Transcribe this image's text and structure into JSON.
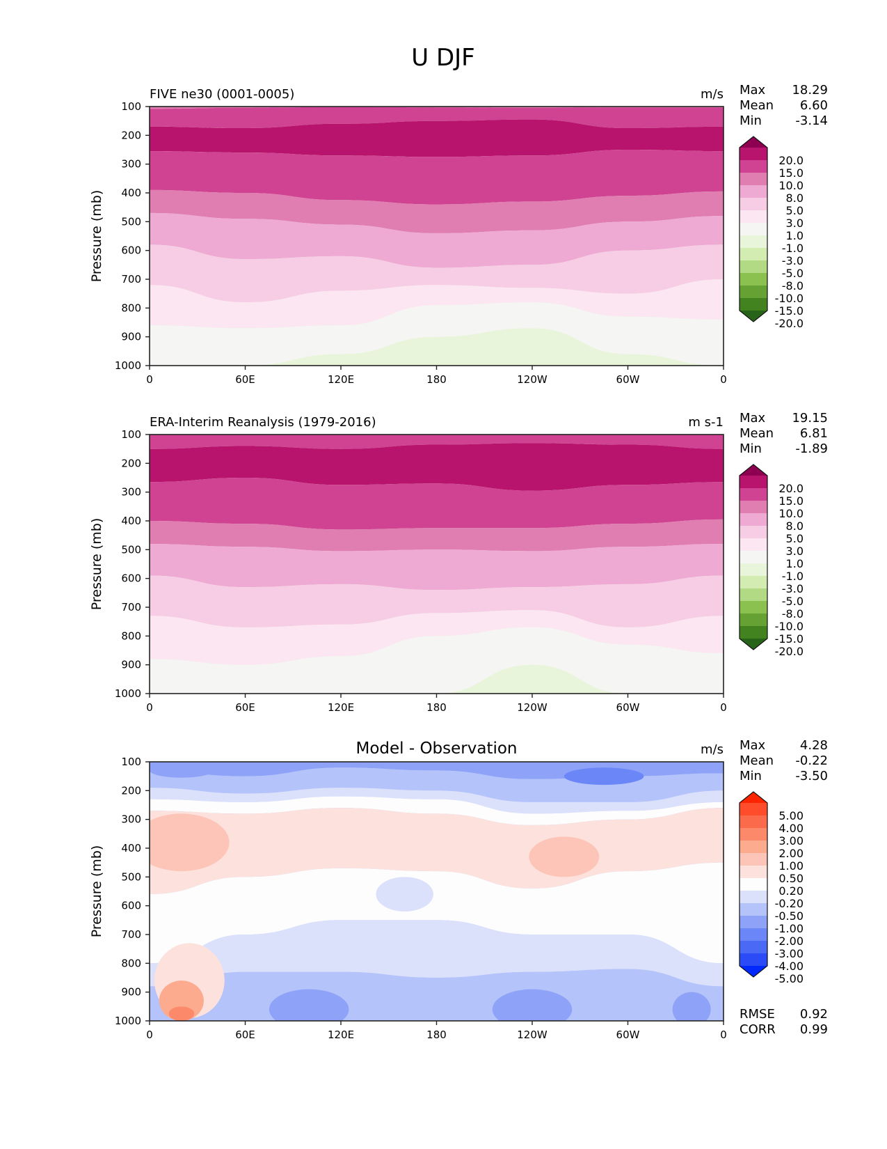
{
  "suptitle": "U DJF",
  "chart_data": [
    {
      "type": "heatmap",
      "subtype": "filled-contour (longitude-pressure cross section)",
      "title_left": "FIVE ne30 (0001-0005)",
      "title_center": "",
      "units": "m/s",
      "xlabel": "",
      "ylabel": "Pressure (mb)",
      "x_ticks": [
        "0",
        "60E",
        "120E",
        "180",
        "120W",
        "60W",
        "0"
      ],
      "x_range_deg": [
        0,
        360
      ],
      "y_ticks": [
        "100",
        "200",
        "300",
        "400",
        "500",
        "600",
        "700",
        "800",
        "900",
        "1000"
      ],
      "y_range": [
        100,
        1000
      ],
      "y_inverted": true,
      "stats": [
        {
          "label": "Max",
          "value": "18.29"
        },
        {
          "label": "Mean",
          "value": "6.60"
        },
        {
          "label": "Min",
          "value": "-3.14"
        }
      ],
      "colorbar": {
        "extend": "both",
        "levels": [
          "20.0",
          "15.0",
          "10.0",
          "8.0",
          "5.0",
          "3.0",
          "1.0",
          "-1.0",
          "-3.0",
          "-5.0",
          "-8.0",
          "-10.0",
          "-15.0",
          "-20.0"
        ],
        "colors": [
          "#8e0152",
          "#b8146e",
          "#d04392",
          "#e07db1",
          "#eeaad2",
          "#f7cde6",
          "#fbe6f1",
          "#f5f5f4",
          "#e9f5da",
          "#d2ecb2",
          "#b2da84",
          "#8bc14f",
          "#65a233",
          "#42821f",
          "#276419"
        ]
      },
      "bands_hpa": [
        {
          "color_index": 3,
          "top": [
            100,
            100,
            100,
            100,
            100,
            100,
            100
          ],
          "bottom": [
            108,
            104,
            102,
            103,
            104,
            103,
            103
          ]
        },
        {
          "color_index": 2,
          "top": [
            108,
            104,
            102,
            103,
            104,
            103,
            103
          ],
          "bottom": [
            170,
            175,
            160,
            150,
            145,
            175,
            170
          ]
        },
        {
          "color_index": 1,
          "top": [
            170,
            175,
            160,
            150,
            145,
            175,
            170
          ],
          "bottom": [
            255,
            260,
            270,
            275,
            270,
            250,
            255
          ]
        },
        {
          "color_index": 2,
          "top": [
            255,
            260,
            270,
            275,
            270,
            250,
            255
          ],
          "bottom": [
            390,
            400,
            425,
            440,
            430,
            410,
            395
          ]
        },
        {
          "color_index": 3,
          "top": [
            390,
            400,
            425,
            440,
            430,
            410,
            395
          ],
          "bottom": [
            470,
            490,
            510,
            540,
            530,
            500,
            480
          ]
        },
        {
          "color_index": 4,
          "top": [
            470,
            490,
            510,
            540,
            530,
            500,
            480
          ],
          "bottom": [
            580,
            630,
            620,
            660,
            650,
            600,
            580
          ]
        },
        {
          "color_index": 5,
          "top": [
            580,
            630,
            620,
            660,
            650,
            600,
            580
          ],
          "bottom": [
            720,
            780,
            740,
            720,
            730,
            750,
            700
          ]
        },
        {
          "color_index": 6,
          "top": [
            720,
            780,
            740,
            720,
            730,
            750,
            700
          ],
          "bottom": [
            860,
            870,
            860,
            790,
            780,
            830,
            840
          ]
        },
        {
          "color_index": 7,
          "top": [
            860,
            870,
            860,
            790,
            780,
            830,
            840
          ],
          "bottom": [
            1000,
            1000,
            1000,
            1000,
            1000,
            1000,
            1000
          ]
        },
        {
          "color_index": 8,
          "top": [
            1000,
            1000,
            960,
            900,
            870,
            960,
            1000
          ],
          "bottom": [
            1000,
            1000,
            1000,
            1000,
            1000,
            1000,
            1000
          ]
        }
      ]
    },
    {
      "type": "heatmap",
      "subtype": "filled-contour (longitude-pressure cross section)",
      "title_left": "ERA-Interim Reanalysis (1979-2016)",
      "title_center": "",
      "units": "m s-1",
      "xlabel": "",
      "ylabel": "Pressure (mb)",
      "x_ticks": [
        "0",
        "60E",
        "120E",
        "180",
        "120W",
        "60W",
        "0"
      ],
      "x_range_deg": [
        0,
        360
      ],
      "y_ticks": [
        "100",
        "200",
        "300",
        "400",
        "500",
        "600",
        "700",
        "800",
        "900",
        "1000"
      ],
      "y_range": [
        100,
        1000
      ],
      "y_inverted": true,
      "stats": [
        {
          "label": "Max",
          "value": "19.15"
        },
        {
          "label": "Mean",
          "value": "6.81"
        },
        {
          "label": "Min",
          "value": "-1.89"
        }
      ],
      "colorbar": {
        "extend": "both",
        "levels": [
          "20.0",
          "15.0",
          "10.0",
          "8.0",
          "5.0",
          "3.0",
          "1.0",
          "-1.0",
          "-3.0",
          "-5.0",
          "-8.0",
          "-10.0",
          "-15.0",
          "-20.0"
        ],
        "colors": [
          "#8e0152",
          "#b8146e",
          "#d04392",
          "#e07db1",
          "#eeaad2",
          "#f7cde6",
          "#fbe6f1",
          "#f5f5f4",
          "#e9f5da",
          "#d2ecb2",
          "#b2da84",
          "#8bc14f",
          "#65a233",
          "#42821f",
          "#276419"
        ]
      },
      "bands_hpa": [
        {
          "color_index": 2,
          "top": [
            100,
            100,
            100,
            100,
            100,
            100,
            100
          ],
          "bottom": [
            150,
            140,
            150,
            135,
            130,
            135,
            150
          ]
        },
        {
          "color_index": 1,
          "top": [
            150,
            140,
            150,
            135,
            130,
            135,
            150
          ],
          "bottom": [
            265,
            250,
            275,
            270,
            295,
            275,
            265
          ]
        },
        {
          "color_index": 2,
          "top": [
            265,
            250,
            275,
            270,
            295,
            275,
            265
          ],
          "bottom": [
            400,
            410,
            430,
            425,
            425,
            410,
            395
          ]
        },
        {
          "color_index": 3,
          "top": [
            400,
            410,
            430,
            425,
            425,
            410,
            395
          ],
          "bottom": [
            480,
            490,
            505,
            500,
            505,
            490,
            480
          ]
        },
        {
          "color_index": 4,
          "top": [
            480,
            490,
            505,
            500,
            505,
            490,
            480
          ],
          "bottom": [
            590,
            630,
            620,
            640,
            630,
            620,
            590
          ]
        },
        {
          "color_index": 5,
          "top": [
            590,
            630,
            620,
            640,
            630,
            620,
            590
          ],
          "bottom": [
            730,
            770,
            760,
            720,
            710,
            770,
            730
          ]
        },
        {
          "color_index": 6,
          "top": [
            730,
            770,
            760,
            720,
            710,
            770,
            730
          ],
          "bottom": [
            880,
            900,
            870,
            800,
            770,
            830,
            860
          ]
        },
        {
          "color_index": 7,
          "top": [
            880,
            900,
            870,
            800,
            770,
            830,
            860
          ],
          "bottom": [
            1000,
            1000,
            1000,
            1000,
            1000,
            1000,
            1000
          ]
        },
        {
          "color_index": 8,
          "top": [
            1000,
            1000,
            1000,
            1000,
            900,
            1000,
            1000
          ],
          "bottom": [
            1000,
            1000,
            1000,
            1000,
            1000,
            1000,
            1000
          ]
        }
      ]
    },
    {
      "type": "heatmap",
      "subtype": "filled-contour difference (longitude-pressure cross section)",
      "title_left": "",
      "title_center": "Model - Observation",
      "units": "m/s",
      "xlabel": "",
      "ylabel": "Pressure (mb)",
      "x_ticks": [
        "0",
        "60E",
        "120E",
        "180",
        "120W",
        "60W",
        "0"
      ],
      "x_range_deg": [
        0,
        360
      ],
      "y_ticks": [
        "100",
        "200",
        "300",
        "400",
        "500",
        "600",
        "700",
        "800",
        "900",
        "1000"
      ],
      "y_range": [
        100,
        1000
      ],
      "y_inverted": true,
      "stats": [
        {
          "label": "Max",
          "value": "4.28"
        },
        {
          "label": "Mean",
          "value": "-0.22"
        },
        {
          "label": "Min",
          "value": "-3.50"
        }
      ],
      "extra_stats": [
        {
          "label": "RMSE",
          "value": "0.92"
        },
        {
          "label": "CORR",
          "value": "0.99"
        }
      ],
      "colorbar": {
        "extend": "both",
        "levels": [
          "5.00",
          "4.00",
          "3.00",
          "2.00",
          "1.00",
          "0.50",
          "0.20",
          "-0.20",
          "-0.50",
          "-1.00",
          "-2.00",
          "-3.00",
          "-4.00",
          "-5.00"
        ],
        "colors": [
          "#ff2400",
          "#ff4d2b",
          "#fb6a4a",
          "#fc8a6a",
          "#fcab8f",
          "#fcc5b7",
          "#fde1dd",
          "#fdfdfd",
          "#dbe1fb",
          "#b5c3fb",
          "#8ea3f8",
          "#6b87f7",
          "#4a69f5",
          "#2a4bf5",
          "#0028ff"
        ]
      },
      "bands_hpa": [
        {
          "color_index": 10,
          "top": [
            100,
            100,
            100,
            100,
            100,
            100,
            100
          ],
          "bottom": [
            130,
            150,
            120,
            130,
            160,
            150,
            140
          ]
        },
        {
          "color_index": 9,
          "top": [
            130,
            150,
            120,
            130,
            160,
            150,
            140
          ],
          "bottom": [
            190,
            210,
            190,
            200,
            240,
            240,
            200
          ]
        },
        {
          "color_index": 8,
          "top": [
            190,
            210,
            190,
            200,
            240,
            240,
            200
          ],
          "bottom": [
            230,
            240,
            220,
            230,
            280,
            270,
            240
          ]
        },
        {
          "color_index": 7,
          "top": [
            230,
            240,
            220,
            230,
            280,
            270,
            240
          ],
          "bottom": [
            270,
            280,
            260,
            280,
            320,
            300,
            260
          ]
        },
        {
          "color_index": 6,
          "top": [
            270,
            280,
            260,
            280,
            320,
            300,
            260
          ],
          "bottom": [
            560,
            500,
            470,
            480,
            540,
            480,
            450
          ]
        },
        {
          "color_index": 7,
          "top": [
            560,
            500,
            470,
            480,
            540,
            480,
            450
          ],
          "bottom": [
            800,
            700,
            650,
            650,
            700,
            700,
            800
          ]
        },
        {
          "color_index": 8,
          "top": [
            800,
            700,
            650,
            650,
            700,
            700,
            800
          ],
          "bottom": [
            880,
            830,
            830,
            850,
            830,
            820,
            880
          ]
        },
        {
          "color_index": 9,
          "top": [
            880,
            830,
            830,
            850,
            830,
            820,
            880
          ],
          "bottom": [
            1000,
            1000,
            1000,
            1000,
            1000,
            1000,
            1000
          ]
        }
      ],
      "blobs": [
        {
          "color_index": 5,
          "lon": 20,
          "p": 380,
          "dlon": 30,
          "dp": 100
        },
        {
          "color_index": 5,
          "lon": 260,
          "p": 430,
          "dlon": 22,
          "dp": 70
        },
        {
          "color_index": 8,
          "lon": 160,
          "p": 560,
          "dlon": 18,
          "dp": 60
        },
        {
          "color_index": 10,
          "lon": 20,
          "p": 130,
          "dlon": 20,
          "dp": 25
        },
        {
          "color_index": 11,
          "lon": 285,
          "p": 150,
          "dlon": 25,
          "dp": 30
        },
        {
          "color_index": 6,
          "lon": 25,
          "p": 860,
          "dlon": 22,
          "dp": 130
        },
        {
          "color_index": 4,
          "lon": 20,
          "p": 930,
          "dlon": 14,
          "dp": 70
        },
        {
          "color_index": 3,
          "lon": 20,
          "p": 975,
          "dlon": 8,
          "dp": 25
        },
        {
          "color_index": 10,
          "lon": 100,
          "p": 960,
          "dlon": 25,
          "dp": 70
        },
        {
          "color_index": 10,
          "lon": 240,
          "p": 960,
          "dlon": 25,
          "dp": 70
        },
        {
          "color_index": 10,
          "lon": 340,
          "p": 960,
          "dlon": 12,
          "dp": 60
        }
      ]
    }
  ]
}
